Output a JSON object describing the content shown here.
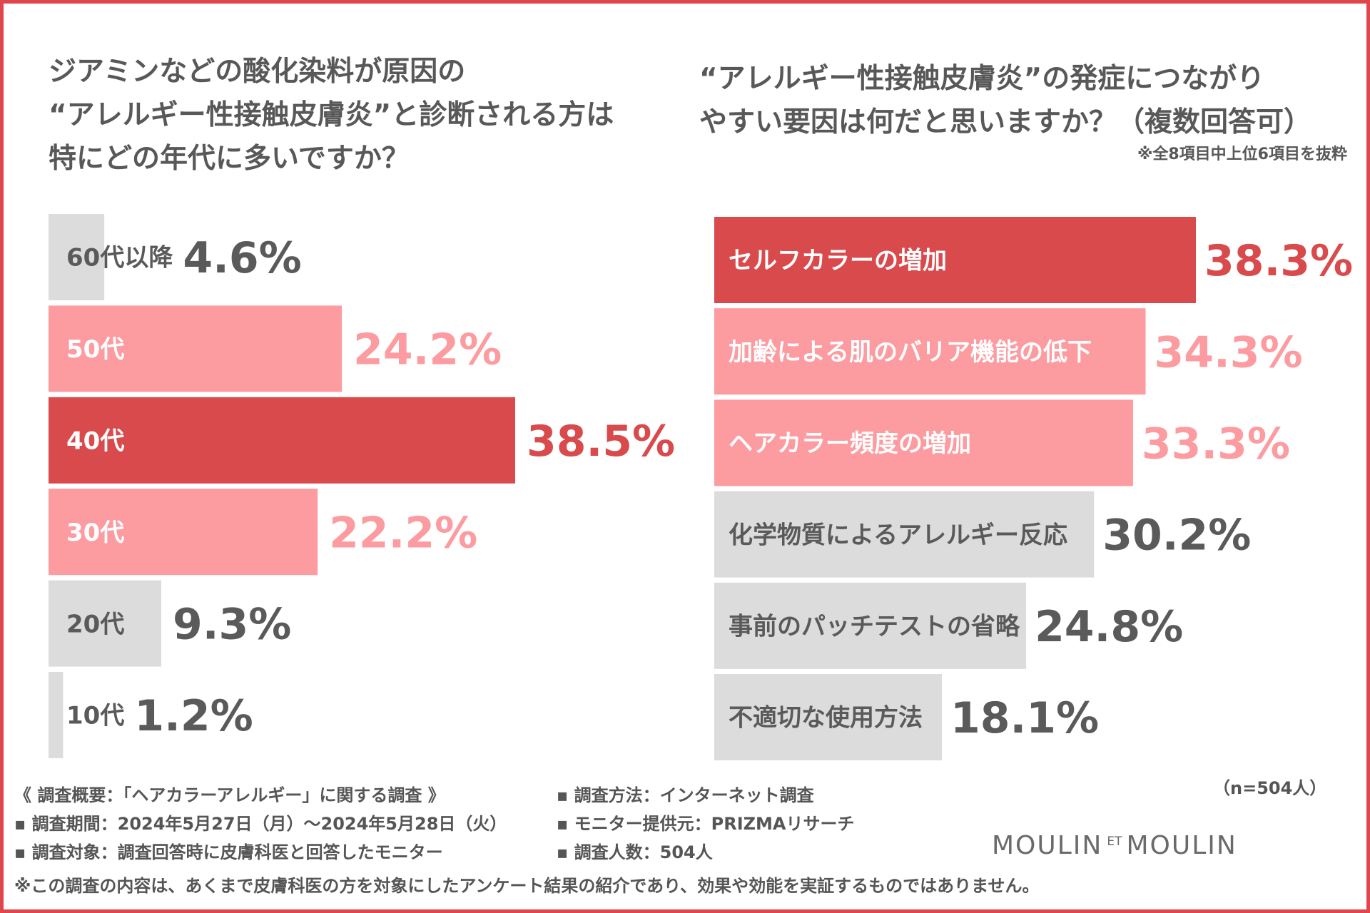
{
  "colors": {
    "border": "#e0474c",
    "highlight": "#d94a4d",
    "pink": "#fc9ba0",
    "gray": "#dcdcdc",
    "text_gray": "#5a5a5a"
  },
  "left": {
    "title_lines": [
      "ジアミンなどの酸化染料が原因の",
      "“アレルギー性接触皮膚炎”と診断される方は",
      "特にどの年代に多いですか？"
    ]
  },
  "right": {
    "title_lines": [
      "“アレルギー性接触皮膚炎”の発症につながり",
      "やすい要因は何だと思いますか？（複数回答可）"
    ],
    "note": "※全8項目中上位6項目を抜粋"
  },
  "chart_data": [
    {
      "type": "bar",
      "orientation": "horizontal",
      "title": "ジアミンなどの酸化染料が原因の“アレルギー性接触皮膚炎”と診断される方は特にどの年代に多いですか？",
      "categories": [
        "60代以降",
        "50代",
        "40代",
        "30代",
        "20代",
        "10代"
      ],
      "values": [
        4.6,
        24.2,
        38.5,
        22.2,
        9.3,
        1.2
      ],
      "value_labels": [
        "4.6%",
        "24.2%",
        "38.5%",
        "22.2%",
        "9.3%",
        "1.2%"
      ],
      "bar_colors": [
        "#dcdcdc",
        "#fc9ba0",
        "#d94a4d",
        "#fc9ba0",
        "#dcdcdc",
        "#dcdcdc"
      ],
      "label_colors": [
        "#5a5a5a",
        "#ffffff",
        "#ffffff",
        "#ffffff",
        "#5a5a5a",
        "#5a5a5a"
      ],
      "value_colors": [
        "#5a5a5a",
        "#fc9ba0",
        "#d94a4d",
        "#fc9ba0",
        "#5a5a5a",
        "#5a5a5a"
      ],
      "unit": "%",
      "xlim": [
        0,
        38.5
      ]
    },
    {
      "type": "bar",
      "orientation": "horizontal",
      "title": "“アレルギー性接触皮膚炎”の発症につながりやすい要因は何だと思いますか？（複数回答可）",
      "categories": [
        "セルフカラーの増加",
        "加齢による肌のバリア機能の低下",
        "ヘアカラー頻度の増加",
        "化学物質によるアレルギー反応",
        "事前のパッチテストの省略",
        "不適切な使用方法"
      ],
      "values": [
        38.3,
        34.3,
        33.3,
        30.2,
        24.8,
        18.1
      ],
      "value_labels": [
        "38.3%",
        "34.3%",
        "33.3%",
        "30.2%",
        "24.8%",
        "18.1%"
      ],
      "bar_colors": [
        "#d94a4d",
        "#fc9ba0",
        "#fc9ba0",
        "#dcdcdc",
        "#dcdcdc",
        "#dcdcdc"
      ],
      "label_colors": [
        "#ffffff",
        "#ffffff",
        "#ffffff",
        "#5a5a5a",
        "#5a5a5a",
        "#5a5a5a"
      ],
      "value_colors": [
        "#d94a4d",
        "#fc9ba0",
        "#fc9ba0",
        "#5a5a5a",
        "#5a5a5a",
        "#5a5a5a"
      ],
      "unit": "%",
      "xlim": [
        0,
        38.3
      ]
    }
  ],
  "footer": {
    "left_lines": [
      "《 調査概要：「ヘアカラーアレルギー」に関する調査 》",
      "▪ 調査期間：2024年5月27日（月）～2024年5月28日（火）",
      "▪ 調査対象：調査回答時に皮膚科医と回答したモニター"
    ],
    "right_lines": [
      "▪ 調査方法：インターネット調査",
      "▪ モニター提供元：PRIZMAリサーチ",
      "▪ 調査人数：504人"
    ],
    "disclaimer": "※この調査の内容は、あくまで皮膚科医の方を対象にしたアンケート結果の紹介であり、効果や効能を実証するものではありません。",
    "sample_size": "（n=504人）"
  },
  "brand": {
    "left": "MOULIN",
    "et": "ET",
    "right": "MOULIN"
  }
}
